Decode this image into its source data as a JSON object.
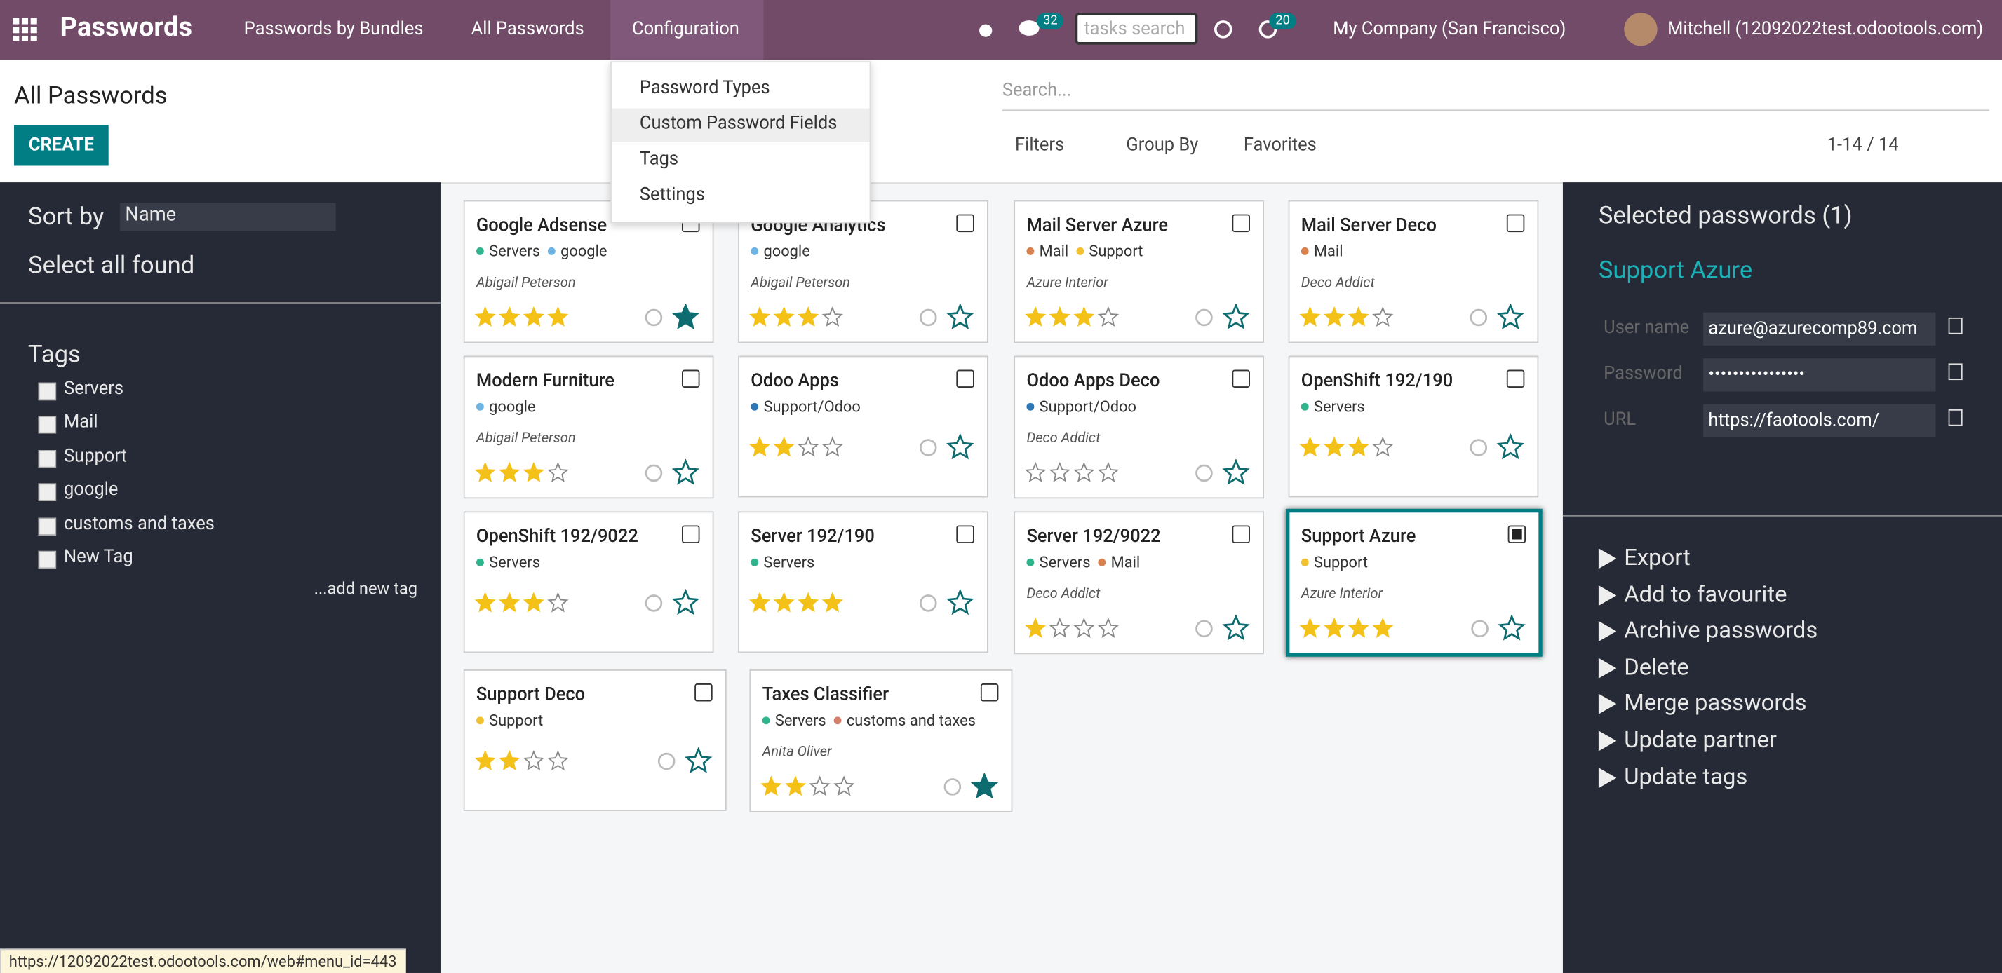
{
  "navbar": {
    "app": "Passwords",
    "menu": [
      "Passwords by Bundles",
      "All Passwords",
      "Configuration"
    ],
    "messages_badge": 32,
    "search_placeholder": "tasks search",
    "activities_badge": 20,
    "company": "My Company (San Francisco)",
    "user": "Mitchell (12092022test.odootools.com)"
  },
  "dropdown": {
    "items": [
      "Password Types",
      "Custom Password Fields",
      "Tags",
      "Settings"
    ]
  },
  "header": {
    "title": "All Passwords",
    "create": "CREATE",
    "search_placeholder": "Search...",
    "filters": "Filters",
    "group_by": "Group By",
    "favorites": "Favorites",
    "pager": "1-14 / 14"
  },
  "sidebar": {
    "sort_label": "Sort by",
    "sort_value": "Name",
    "select_all": "Select all found",
    "tags_title": "Tags",
    "tags": [
      "Servers",
      "Mail",
      "Support",
      "google",
      "customs and taxes",
      "New Tag"
    ],
    "add_tag": "...add new tag"
  },
  "tag_colors": {
    "Servers": "#2fb58e",
    "google": "#6bb4e4",
    "Mail": "#d9804f",
    "Support": "#f2c12e",
    "Support/Odoo": "#2e78b8",
    "customs and taxes": "#d5806c"
  },
  "cards": [
    {
      "name": "Google Adsense",
      "tags": [
        "Servers",
        "google"
      ],
      "partner": "Abigail Peterson",
      "rating": 4,
      "favorite": true,
      "selected": false
    },
    {
      "name": "Google Analytics",
      "tags": [
        "google"
      ],
      "partner": "Abigail Peterson",
      "rating": 3,
      "favorite": false,
      "selected": false
    },
    {
      "name": "Mail Server Azure",
      "tags": [
        "Mail",
        "Support"
      ],
      "partner": "Azure Interior",
      "rating": 3,
      "favorite": false,
      "selected": false
    },
    {
      "name": "Mail Server Deco",
      "tags": [
        "Mail"
      ],
      "partner": "Deco Addict",
      "rating": 3,
      "favorite": false,
      "selected": false
    },
    {
      "name": "Modern Furniture",
      "tags": [
        "google"
      ],
      "partner": "Abigail Peterson",
      "rating": 3,
      "favorite": false,
      "selected": false
    },
    {
      "name": "Odoo Apps",
      "tags": [
        "Support/Odoo"
      ],
      "partner": null,
      "rating": 2,
      "favorite": false,
      "selected": false
    },
    {
      "name": "Odoo Apps Deco",
      "tags": [
        "Support/Odoo"
      ],
      "partner": "Deco Addict",
      "rating": 0,
      "favorite": false,
      "selected": false
    },
    {
      "name": "OpenShift 192/190",
      "tags": [
        "Servers"
      ],
      "partner": null,
      "rating": 3,
      "favorite": false,
      "selected": false
    },
    {
      "name": "OpenShift 192/9022",
      "tags": [
        "Servers"
      ],
      "partner": null,
      "rating": 3,
      "favorite": false,
      "selected": false
    },
    {
      "name": "Server 192/190",
      "tags": [
        "Servers"
      ],
      "partner": null,
      "rating": 4,
      "favorite": false,
      "selected": false
    },
    {
      "name": "Server 192/9022",
      "tags": [
        "Servers",
        "Mail"
      ],
      "partner": "Deco Addict",
      "rating": 1,
      "favorite": false,
      "selected": false
    },
    {
      "name": "Support Azure",
      "tags": [
        "Support"
      ],
      "partner": "Azure Interior",
      "rating": 4,
      "favorite": false,
      "selected": true
    },
    {
      "name": "Support Deco",
      "tags": [
        "Support"
      ],
      "partner": null,
      "rating": 2,
      "favorite": false,
      "selected": false
    },
    {
      "name": "Taxes Classifier",
      "tags": [
        "Servers",
        "customs and taxes"
      ],
      "partner": "Anita Oliver",
      "rating": 2,
      "favorite": true,
      "selected": false
    }
  ],
  "panel": {
    "title": "Selected passwords (1)",
    "selected_name": "Support Azure",
    "fields": [
      {
        "label": "User name",
        "value": "azure@azurecomp89.com"
      },
      {
        "label": "Password",
        "value": "••••••••••••••••"
      },
      {
        "label": "URL",
        "value": "https://faotools.com/"
      }
    ],
    "actions": [
      "Export",
      "Add to favourite",
      "Archive passwords",
      "Delete",
      "Merge passwords",
      "Update partner",
      "Update tags"
    ]
  },
  "status_url": "https://12092022test.odootools.com/web#menu_id=443"
}
